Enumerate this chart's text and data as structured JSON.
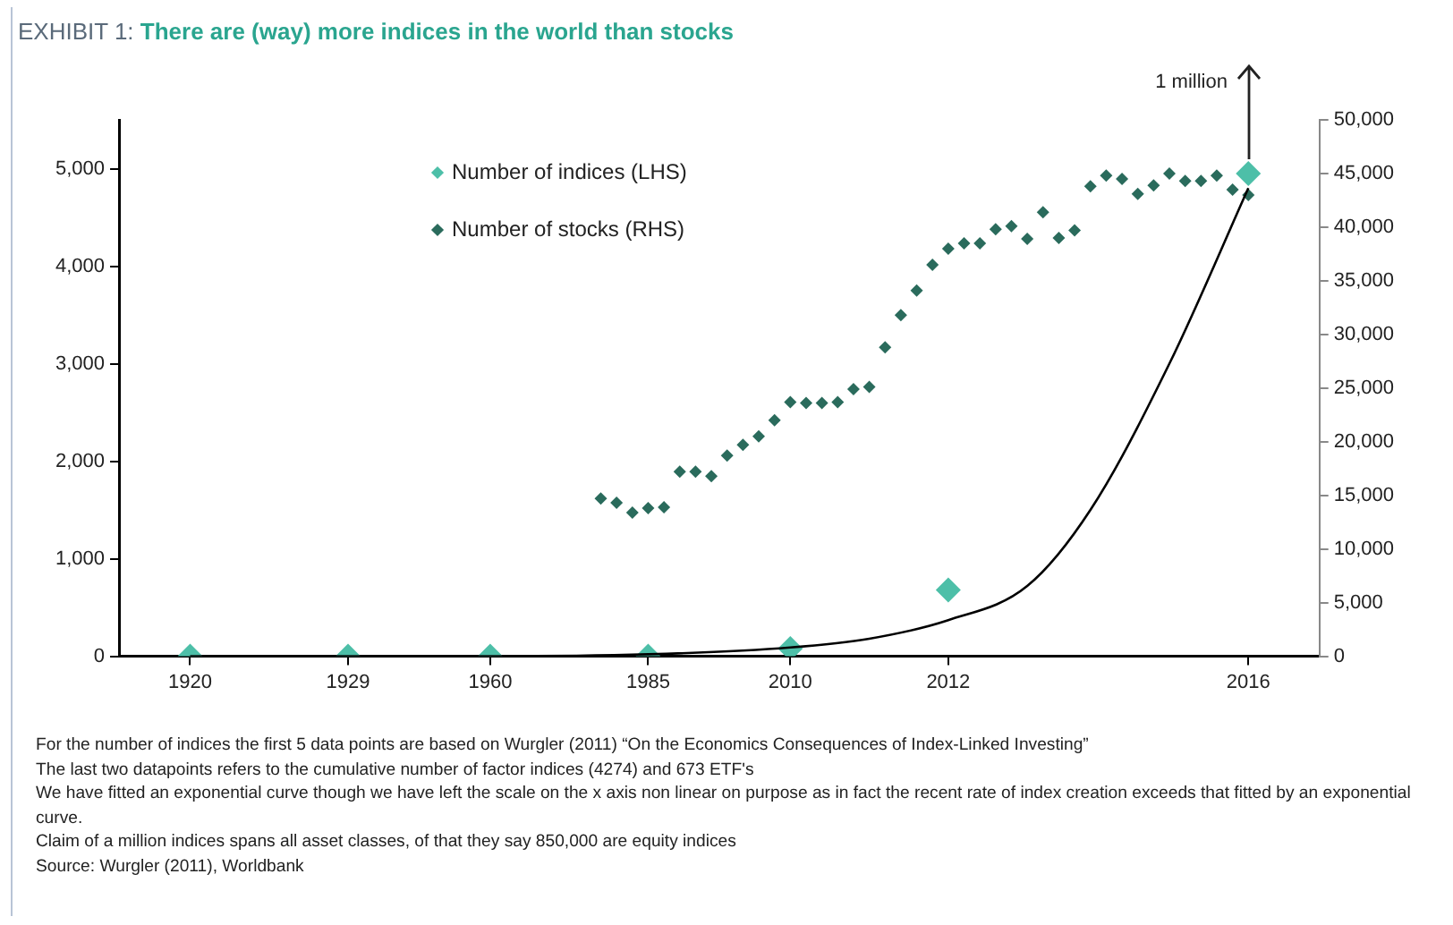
{
  "chart_data": {
    "type": "scatter",
    "title": "EXHIBIT 1: There are (way) more indices in the world than stocks",
    "categories": [
      null,
      null,
      null,
      null,
      "1920",
      null,
      null,
      null,
      null,
      null,
      null,
      null,
      null,
      null,
      "1929",
      null,
      null,
      null,
      null,
      null,
      null,
      null,
      null,
      "1960",
      null,
      null,
      null,
      null,
      null,
      null,
      null,
      null,
      null,
      "1985",
      null,
      null,
      null,
      null,
      null,
      null,
      null,
      null,
      "2010",
      null,
      null,
      null,
      null,
      null,
      null,
      null,
      null,
      null,
      "2012",
      null,
      null,
      null,
      null,
      null,
      null,
      null,
      null,
      null,
      null,
      null,
      null,
      null,
      null,
      null,
      null,
      null,
      null,
      "2016",
      null,
      null,
      null,
      null
    ],
    "series": [
      {
        "name": "Number of indices (LHS)",
        "color": "#4dbfa8",
        "values": [
          null,
          null,
          null,
          null,
          0,
          null,
          null,
          null,
          null,
          null,
          null,
          null,
          null,
          null,
          0,
          null,
          null,
          null,
          null,
          null,
          null,
          null,
          null,
          0,
          null,
          null,
          null,
          null,
          null,
          null,
          null,
          null,
          null,
          0,
          null,
          null,
          null,
          null,
          null,
          null,
          null,
          null,
          80,
          null,
          null,
          null,
          null,
          null,
          null,
          null,
          null,
          null,
          680,
          null,
          null,
          null,
          null,
          null,
          null,
          null,
          null,
          null,
          null,
          null,
          null,
          null,
          null,
          null,
          null,
          null,
          null,
          4950,
          null,
          null,
          null,
          null
        ]
      },
      {
        "name": "Number of stocks (RHS)",
        "axis": "y2",
        "color": "#2a6b5c",
        "values": [
          null,
          null,
          null,
          null,
          null,
          null,
          null,
          null,
          null,
          null,
          null,
          null,
          null,
          null,
          null,
          null,
          null,
          null,
          null,
          null,
          null,
          null,
          null,
          null,
          null,
          null,
          null,
          null,
          null,
          null,
          14700,
          14300,
          13400,
          13800,
          13900,
          17200,
          17200,
          16800,
          18700,
          19700,
          20500,
          22000,
          23700,
          23600,
          23600,
          23700,
          24900,
          25100,
          28800,
          31800,
          34100,
          36500,
          38000,
          38500,
          38500,
          39800,
          40100,
          38900,
          41400,
          39000,
          39700,
          43800,
          44800,
          44500,
          43100,
          43900,
          45000,
          44300,
          44300,
          44800,
          43500,
          43000,
          null,
          null,
          null,
          null
        ]
      },
      {
        "type": "line",
        "color": "#000000",
        "marker": "none",
        "values": [
          null,
          null,
          null,
          null,
          0,
          null,
          null,
          null,
          null,
          null,
          null,
          null,
          null,
          null,
          0,
          null,
          null,
          null,
          null,
          null,
          null,
          null,
          null,
          0,
          null,
          null,
          null,
          null,
          null,
          null,
          null,
          null,
          null,
          20,
          null,
          null,
          null,
          null,
          null,
          null,
          null,
          null,
          90,
          null,
          null,
          null,
          null,
          180,
          null,
          null,
          null,
          null,
          370,
          null,
          null,
          null,
          null,
          720,
          null,
          null,
          null,
          1500,
          null,
          null,
          null,
          null,
          3000,
          null,
          null,
          null,
          null,
          4800,
          null,
          null,
          null,
          null
        ]
      }
    ],
    "ylim": [
      0,
      5500
    ],
    "yticks": [
      0,
      {
        "value": 1000,
        "label": "1,000"
      },
      {
        "value": 2000,
        "label": "2,000"
      },
      {
        "value": 3000,
        "label": "3,000"
      },
      {
        "value": 4000,
        "label": "4,000"
      },
      {
        "value": 5000,
        "label": "5,000"
      }
    ],
    "y2lim": [
      0,
      50000
    ],
    "y2ticks": [
      0,
      {
        "value": 5000,
        "label": "5,000"
      },
      {
        "value": 10000,
        "label": "10,000"
      },
      {
        "value": 15000,
        "label": "15,000"
      },
      {
        "value": 20000,
        "label": "20,000"
      },
      {
        "value": 25000,
        "label": "25,000"
      },
      {
        "value": 30000,
        "label": "30,000"
      },
      {
        "value": 35000,
        "label": "35,000"
      },
      {
        "value": 40000,
        "label": "40,000"
      },
      {
        "value": 45000,
        "label": "45,000"
      },
      {
        "value": 50000,
        "label": "50,000"
      }
    ],
    "grid": false,
    "legend": "top",
    "marker": "diamond",
    "annotations": [
      {
        "text": "1 million",
        "x": "2016",
        "y": 4950
      },
      "For the number of indices the first 5 data points are based on Wurgler (2011) “On the Economics Consequences of Index-Linked Investing”",
      "The last two datapoints refers to the cumulative number of factor indices (4274) and 673 ETF's",
      "We have fitted an exponential curve though we have left the scale on the x axis non linear on purpose as in fact the recent rate of index creation exceeds that fitted by an exponential curve.",
      "Claim of a million indices spans all asset classes, of that they say 850,000 are equity indices",
      "Source: Wurgler (2011), Worldbank"
    ]
  }
}
